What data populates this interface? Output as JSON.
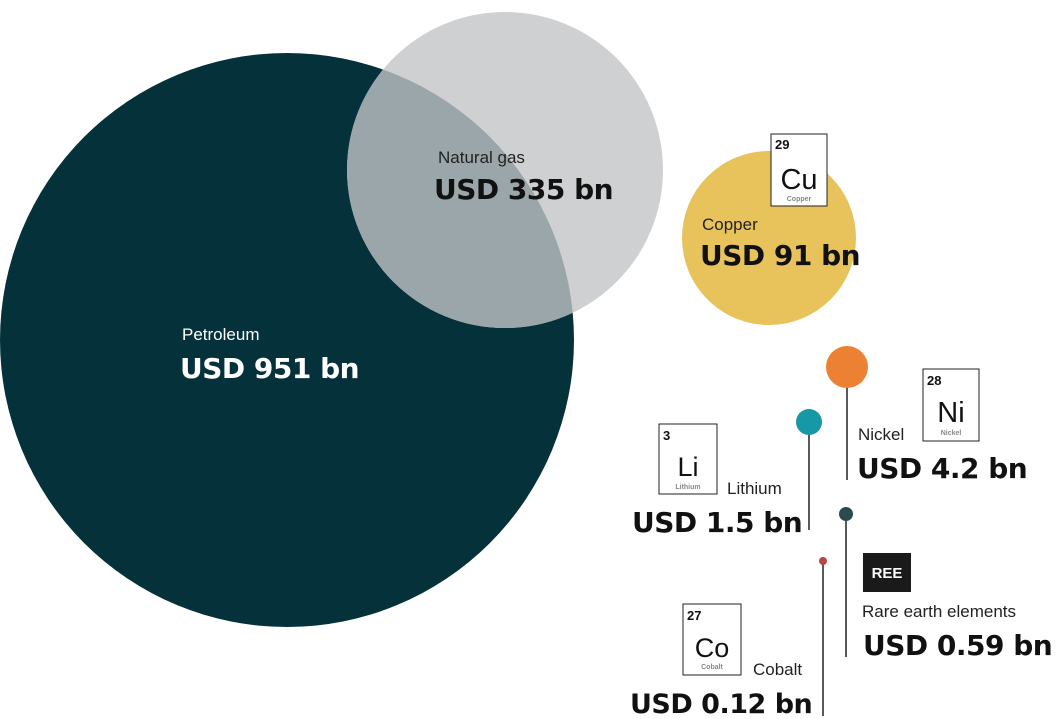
{
  "chart_data": {
    "type": "bubble",
    "unit": "USD bn",
    "items": [
      {
        "name": "Petroleum",
        "value": 951,
        "value_label": "USD 951 bn",
        "color": "#04313a"
      },
      {
        "name": "Natural gas",
        "value": 335,
        "value_label": "USD 335 bn",
        "color": "#cfd0d2"
      },
      {
        "name": "Copper",
        "value": 91,
        "value_label": "USD 91 bn",
        "color": "#e8c35c",
        "element": {
          "number": "29",
          "symbol": "Cu",
          "name": "Copper"
        }
      },
      {
        "name": "Nickel",
        "value": 4.2,
        "value_label": "USD 4.2 bn",
        "color": "#ed8133",
        "element": {
          "number": "28",
          "symbol": "Ni",
          "name": "Nickel"
        }
      },
      {
        "name": "Lithium",
        "value": 1.5,
        "value_label": "USD 1.5 bn",
        "color": "#1798a6",
        "element": {
          "number": "3",
          "symbol": "Li",
          "name": "Lithium"
        }
      },
      {
        "name": "Rare earth elements",
        "value": 0.59,
        "value_label": "USD 0.59 bn",
        "color": "#2c4a4e",
        "badge": "REE"
      },
      {
        "name": "Cobalt",
        "value": 0.12,
        "value_label": "USD 0.12 bn",
        "color": "#b94545",
        "element": {
          "number": "27",
          "symbol": "Co",
          "name": "Cobalt"
        }
      }
    ],
    "overlap_color": "#9aa6a9"
  }
}
